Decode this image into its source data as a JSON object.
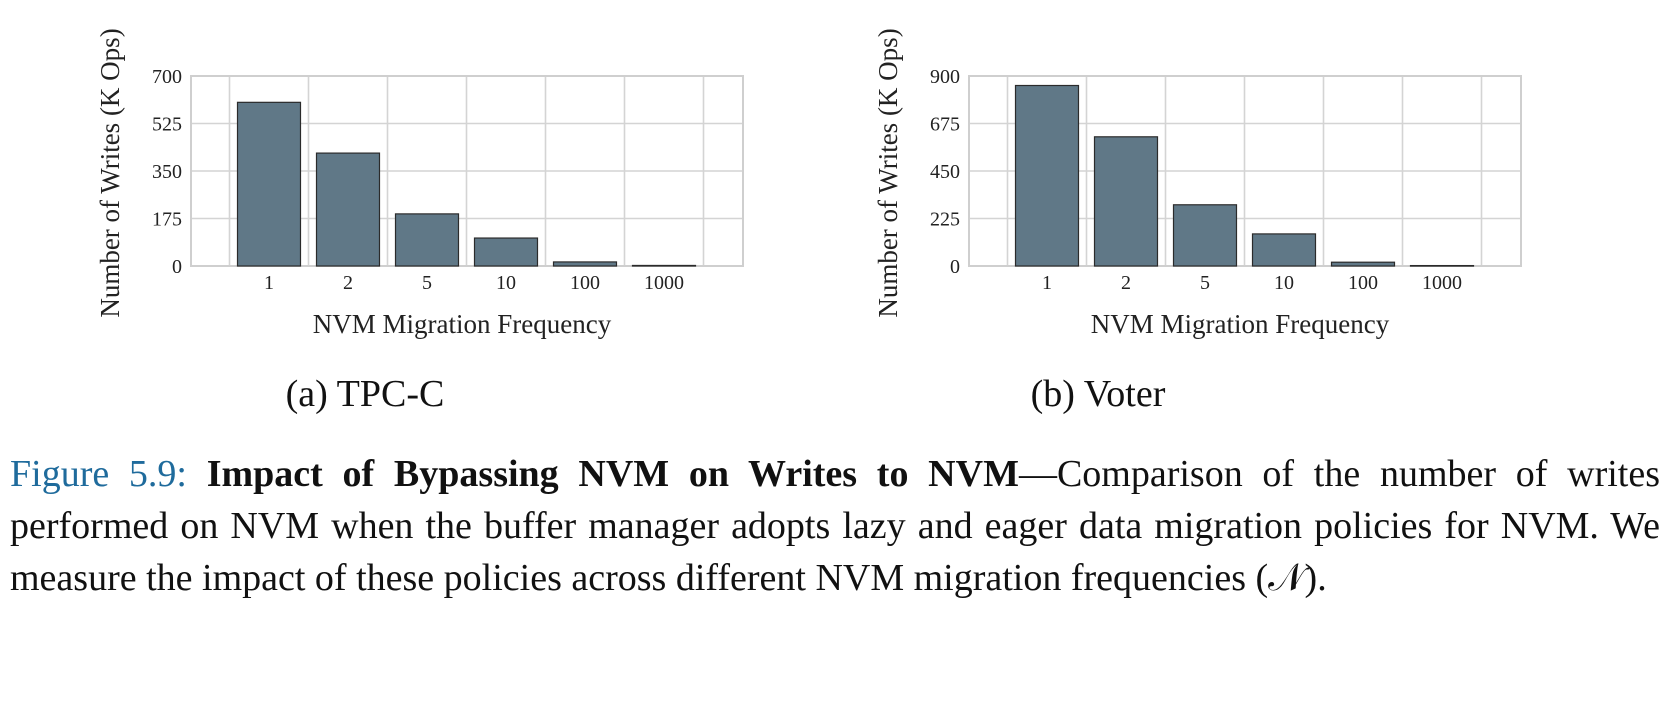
{
  "chart_data": [
    {
      "type": "bar",
      "panel_label": "(a) TPC-C",
      "categories": [
        "1",
        "2",
        "5",
        "10",
        "100",
        "1000"
      ],
      "values": [
        603,
        416,
        192,
        103,
        15,
        2
      ],
      "xlabel": "NVM Migration Frequency",
      "ylabel": "Number of Writes (K Ops)",
      "yticks": [
        "0",
        "175",
        "350",
        "525",
        "700"
      ],
      "ylim": [
        0,
        700
      ],
      "grid": true,
      "bar_color": "#607887"
    },
    {
      "type": "bar",
      "panel_label": "(b) Voter",
      "categories": [
        "1",
        "2",
        "5",
        "10",
        "100",
        "1000"
      ],
      "values": [
        855,
        612,
        290,
        152,
        18,
        2
      ],
      "xlabel": "NVM Migration Frequency",
      "ylabel": "Number of Writes (K Ops)",
      "yticks": [
        "0",
        "225",
        "450",
        "675",
        "900"
      ],
      "ylim": [
        0,
        900
      ],
      "grid": true,
      "bar_color": "#607887"
    }
  ],
  "caption": {
    "number": "Figure 5.9:",
    "title": "Impact of Bypassing NVM on Writes to NVM",
    "text": "—Comparison of the number of writes performed on NVM when the buffer manager adopts lazy and eager data migration policies for NVM. We measure the impact of these policies across different NVM migration frequencies (𝒩)."
  }
}
